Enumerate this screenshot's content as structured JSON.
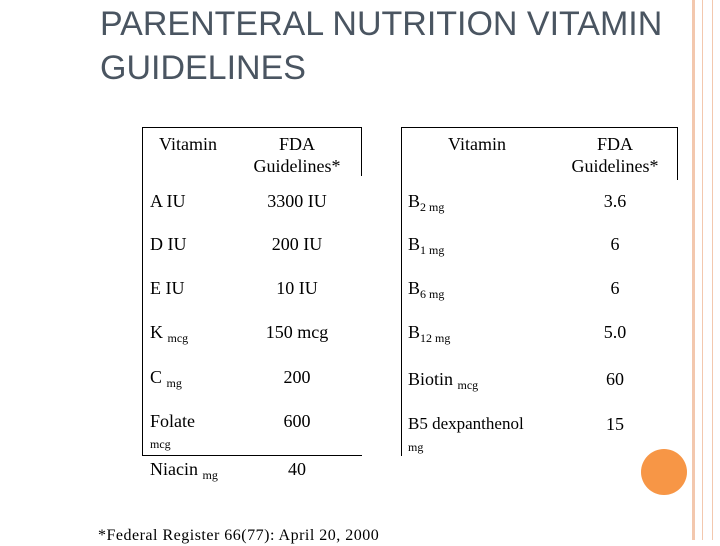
{
  "title": "PARENTERAL NUTRITION VITAMIN GUIDELINES",
  "left_table": {
    "headers": [
      "Vitamin",
      "FDA Guidelines*"
    ],
    "rows": [
      {
        "vitamin": "A IU",
        "unit": "",
        "value": "3300 IU"
      },
      {
        "vitamin": "D IU",
        "unit": "",
        "value": "200 IU"
      },
      {
        "vitamin": "E IU",
        "unit": "",
        "value": "10 IU"
      },
      {
        "vitamin": "K",
        "unit": "mcg",
        "value": "150 mcg"
      },
      {
        "vitamin": "C",
        "unit": "mg",
        "value": "200"
      },
      {
        "vitamin": "Folate",
        "unit": "mcg",
        "value": "600"
      },
      {
        "vitamin": "Niacin",
        "unit": "mg",
        "value": "40"
      }
    ]
  },
  "right_table": {
    "headers": [
      "Vitamin",
      "FDA Guidelines*"
    ],
    "rows": [
      {
        "vitamin": "B",
        "subscript": "2 mg",
        "value": "3.6"
      },
      {
        "vitamin": "B",
        "subscript": "1 mg",
        "value": "6"
      },
      {
        "vitamin": "B",
        "subscript": "6 mg",
        "value": "6"
      },
      {
        "vitamin": "B",
        "subscript": "12 mg",
        "value": "5.0"
      },
      {
        "vitamin": "Biotin",
        "subscript": "mcg",
        "value": "60"
      },
      {
        "vitamin": "B5 dexpanthenol",
        "subscript": "mg",
        "value": "15"
      }
    ]
  },
  "footnote": "*Federal Register 66(77): April 20, 2000"
}
